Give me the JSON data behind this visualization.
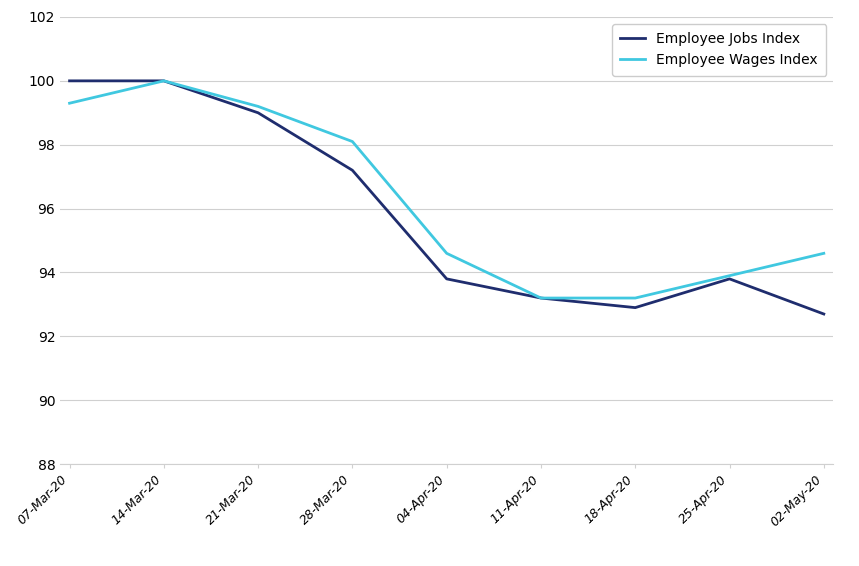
{
  "x_labels": [
    "07-Mar-20",
    "14-Mar-20",
    "21-Mar-20",
    "28-Mar-20",
    "04-Apr-20",
    "11-Apr-20",
    "18-Apr-20",
    "25-Apr-20",
    "02-May-20"
  ],
  "jobs_index": [
    100.0,
    100.0,
    99.0,
    97.2,
    93.8,
    93.2,
    92.9,
    93.8,
    92.7
  ],
  "wages_index": [
    99.3,
    100.0,
    99.2,
    98.1,
    94.6,
    93.2,
    93.2,
    93.9,
    94.6
  ],
  "jobs_color": "#1F2D6E",
  "wages_color": "#40C8E0",
  "jobs_label": "Employee Jobs Index",
  "wages_label": "Employee Wages Index",
  "ylim": [
    88,
    102
  ],
  "yticks": [
    88,
    90,
    92,
    94,
    96,
    98,
    100,
    102
  ],
  "line_width": 2.0,
  "background_color": "#ffffff",
  "grid_color": "#d0d0d0"
}
